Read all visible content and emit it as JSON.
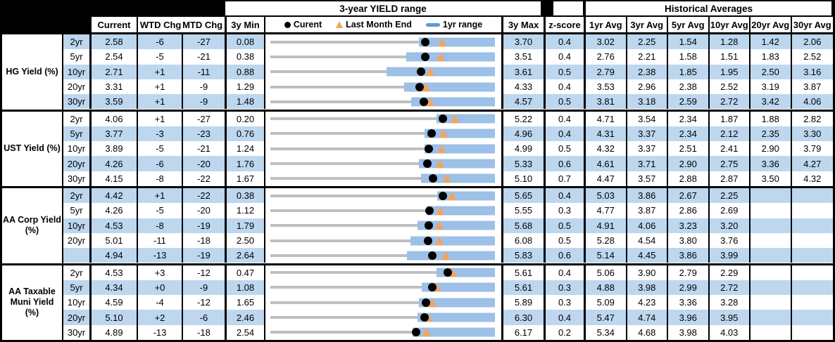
{
  "header": {
    "range_title": "3-year YIELD range",
    "historical_title": "Historical Averages",
    "col_current": "Current",
    "col_wtd": "WTD Chg",
    "col_mtd": "MTD Chg",
    "col_min": "3y Min",
    "col_max": "3y Max",
    "col_z": "z-score",
    "avg_cols": [
      "1yr Avg",
      "3yr Avg",
      "5yr Avg",
      "10yr Avg",
      "20yr Avg",
      "30yr Avg"
    ]
  },
  "legend": {
    "current_label": "Curent",
    "last_month_label": "Last Month End",
    "range_label": "1yr range"
  },
  "colors": {
    "stripe": "#BDD7EE",
    "range_bar": "#9CC0E7",
    "track": "#BFBFBF",
    "current_dot": "#000000",
    "last_month_triangle": "#F5A35C",
    "legend_swatch": "#5B9BD5"
  },
  "chart_data": {
    "type": "bullet-range-table",
    "description": "Each row: gray track spans 3y Min to 3y Max; blue bar is 1yr range (estimated low to 3y Max); black dot = Current; orange triangle = Last Month End (Current minus MTD chg in bps).",
    "groups": [
      {
        "label": "HG Yield (%)",
        "rows": [
          {
            "tenor": "2yr",
            "current": "2.58",
            "wtd_chg": "-6",
            "mtd_chg": "-27",
            "min_3y": "0.08",
            "max_3y": "3.70",
            "z_score": "0.4",
            "avg": [
              "3.02",
              "2.25",
              "1.54",
              "1.28",
              "1.42",
              "2.06"
            ],
            "range_1yr": [
              2.47,
              3.7
            ]
          },
          {
            "tenor": "5yr",
            "current": "2.54",
            "wtd_chg": "-5",
            "mtd_chg": "-21",
            "min_3y": "0.38",
            "max_3y": "3.51",
            "z_score": "0.4",
            "avg": [
              "2.76",
              "2.21",
              "1.58",
              "1.51",
              "1.83",
              "2.52"
            ],
            "range_1yr": [
              2.27,
              3.51
            ]
          },
          {
            "tenor": "10yr",
            "current": "2.71",
            "wtd_chg": "+1",
            "mtd_chg": "-11",
            "min_3y": "0.88",
            "max_3y": "3.61",
            "z_score": "0.5",
            "avg": [
              "2.79",
              "2.38",
              "1.85",
              "1.95",
              "2.50",
              "3.16"
            ],
            "range_1yr": [
              2.29,
              3.61
            ]
          },
          {
            "tenor": "20yr",
            "current": "3.31",
            "wtd_chg": "+1",
            "mtd_chg": "-9",
            "min_3y": "1.29",
            "max_3y": "4.33",
            "z_score": "0.4",
            "avg": [
              "3.53",
              "2.96",
              "2.38",
              "2.52",
              "3.19",
              "3.87"
            ],
            "range_1yr": [
              3.1,
              4.33
            ]
          },
          {
            "tenor": "30yr",
            "current": "3.59",
            "wtd_chg": "+1",
            "mtd_chg": "-9",
            "min_3y": "1.48",
            "max_3y": "4.57",
            "z_score": "0.5",
            "avg": [
              "3.81",
              "3.18",
              "2.59",
              "2.72",
              "3.42",
              "4.06"
            ],
            "range_1yr": [
              3.42,
              4.57
            ]
          }
        ]
      },
      {
        "label": "UST Yield (%)",
        "rows": [
          {
            "tenor": "2yr",
            "current": "4.06",
            "wtd_chg": "+1",
            "mtd_chg": "-27",
            "min_3y": "0.20",
            "max_3y": "5.22",
            "z_score": "0.4",
            "avg": [
              "4.71",
              "3.54",
              "2.34",
              "1.87",
              "1.88",
              "2.82"
            ],
            "range_1yr": [
              3.92,
              5.22
            ]
          },
          {
            "tenor": "5yr",
            "current": "3.77",
            "wtd_chg": "-3",
            "mtd_chg": "-23",
            "min_3y": "0.76",
            "max_3y": "4.96",
            "z_score": "0.4",
            "avg": [
              "4.31",
              "3.37",
              "2.34",
              "2.12",
              "2.35",
              "3.30"
            ],
            "range_1yr": [
              3.64,
              4.96
            ]
          },
          {
            "tenor": "10yr",
            "current": "3.89",
            "wtd_chg": "-5",
            "mtd_chg": "-21",
            "min_3y": "1.24",
            "max_3y": "4.99",
            "z_score": "0.5",
            "avg": [
              "4.32",
              "3.37",
              "2.51",
              "2.41",
              "2.90",
              "3.79"
            ],
            "range_1yr": [
              3.81,
              4.99
            ]
          },
          {
            "tenor": "20yr",
            "current": "4.26",
            "wtd_chg": "-6",
            "mtd_chg": "-20",
            "min_3y": "1.76",
            "max_3y": "5.33",
            "z_score": "0.6",
            "avg": [
              "4.61",
              "3.71",
              "2.90",
              "2.75",
              "3.36",
              "4.27"
            ],
            "range_1yr": [
              4.12,
              5.33
            ]
          },
          {
            "tenor": "30yr",
            "current": "4.15",
            "wtd_chg": "-8",
            "mtd_chg": "-22",
            "min_3y": "1.67",
            "max_3y": "5.10",
            "z_score": "0.7",
            "avg": [
              "4.47",
              "3.57",
              "2.88",
              "2.87",
              "3.50",
              "4.32"
            ],
            "range_1yr": [
              3.97,
              5.1
            ]
          }
        ]
      },
      {
        "label": "AA Corp Yield (%)",
        "rows": [
          {
            "tenor": "2yr",
            "current": "4.42",
            "wtd_chg": "+1",
            "mtd_chg": "-22",
            "min_3y": "0.38",
            "max_3y": "5.65",
            "z_score": "0.4",
            "avg": [
              "5.03",
              "3.86",
              "2.67",
              "2.25",
              "",
              ""
            ],
            "range_1yr": [
              4.29,
              5.65
            ]
          },
          {
            "tenor": "5yr",
            "current": "4.26",
            "wtd_chg": "-5",
            "mtd_chg": "-20",
            "min_3y": "1.12",
            "max_3y": "5.55",
            "z_score": "0.3",
            "avg": [
              "4.77",
              "3.87",
              "2.86",
              "2.69",
              "",
              ""
            ],
            "range_1yr": [
              4.2,
              5.55
            ]
          },
          {
            "tenor": "10yr",
            "current": "4.53",
            "wtd_chg": "-8",
            "mtd_chg": "-19",
            "min_3y": "1.79",
            "max_3y": "5.68",
            "z_score": "0.5",
            "avg": [
              "4.91",
              "4.06",
              "3.23",
              "3.20",
              "",
              ""
            ],
            "range_1yr": [
              4.34,
              5.68
            ]
          },
          {
            "tenor": "20yr",
            "current": "5.01",
            "wtd_chg": "-11",
            "mtd_chg": "-18",
            "min_3y": "2.50",
            "max_3y": "6.08",
            "z_score": "0.5",
            "avg": [
              "5.28",
              "4.54",
              "3.80",
              "3.76",
              "",
              ""
            ],
            "range_1yr": [
              4.73,
              6.08
            ]
          },
          {
            "tenor": "",
            "current": "4.94",
            "wtd_chg": "-13",
            "mtd_chg": "-19",
            "min_3y": "2.64",
            "max_3y": "5.83",
            "z_score": "0.6",
            "avg": [
              "5.14",
              "4.45",
              "3.86",
              "3.99",
              "",
              ""
            ],
            "range_1yr": [
              4.58,
              5.83
            ]
          }
        ]
      },
      {
        "label": "AA Taxable Muni Yield (%)",
        "rows": [
          {
            "tenor": "2yr",
            "current": "4.53",
            "wtd_chg": "+3",
            "mtd_chg": "-12",
            "min_3y": "0.47",
            "max_3y": "5.61",
            "z_score": "0.4",
            "avg": [
              "5.06",
              "3.90",
              "2.79",
              "2.29",
              "",
              ""
            ],
            "range_1yr": [
              4.28,
              5.61
            ]
          },
          {
            "tenor": "5yr",
            "current": "4.34",
            "wtd_chg": "+0",
            "mtd_chg": "-9",
            "min_3y": "1.08",
            "max_3y": "5.61",
            "z_score": "0.3",
            "avg": [
              "4.88",
              "3.98",
              "2.99",
              "2.72",
              "",
              ""
            ],
            "range_1yr": [
              4.14,
              5.61
            ]
          },
          {
            "tenor": "10yr",
            "current": "4.59",
            "wtd_chg": "-4",
            "mtd_chg": "-12",
            "min_3y": "1.65",
            "max_3y": "5.89",
            "z_score": "0.3",
            "avg": [
              "5.09",
              "4.23",
              "3.36",
              "3.28",
              "",
              ""
            ],
            "range_1yr": [
              4.45,
              5.89
            ]
          },
          {
            "tenor": "20yr",
            "current": "5.10",
            "wtd_chg": "+2",
            "mtd_chg": "-6",
            "min_3y": "2.46",
            "max_3y": "6.30",
            "z_score": "0.4",
            "avg": [
              "5.47",
              "4.74",
              "3.96",
              "3.95",
              "",
              ""
            ],
            "range_1yr": [
              4.98,
              6.3
            ]
          },
          {
            "tenor": "30yr",
            "current": "4.89",
            "wtd_chg": "-13",
            "mtd_chg": "-18",
            "min_3y": "2.54",
            "max_3y": "6.17",
            "z_score": "0.2",
            "avg": [
              "5.34",
              "4.68",
              "3.98",
              "4.03",
              "",
              ""
            ],
            "range_1yr": [
              4.84,
              6.17
            ]
          }
        ]
      }
    ]
  }
}
